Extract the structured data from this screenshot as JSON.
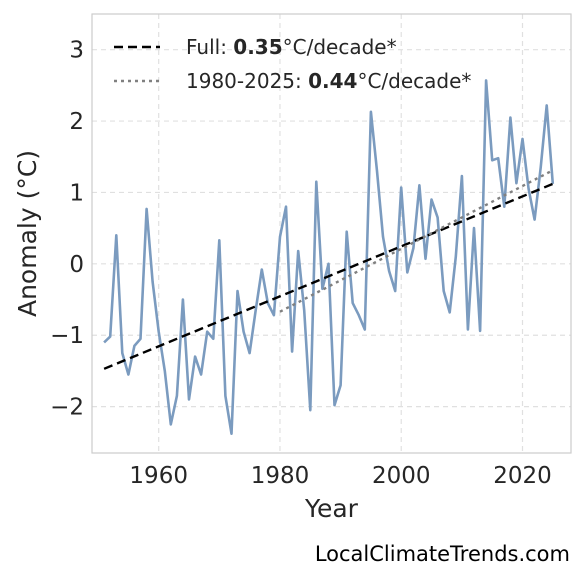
{
  "chart_data": {
    "type": "line",
    "xlabel": "Year",
    "ylabel": "Anomaly (°C)",
    "xlim": [
      1949,
      2028
    ],
    "ylim": [
      -2.65,
      3.5
    ],
    "x_ticks": [
      1960,
      1980,
      2000,
      2020
    ],
    "y_ticks": [
      -2,
      -1,
      0,
      1,
      2,
      3
    ],
    "y_tick_labels": [
      "−2",
      "−1",
      "0",
      "1",
      "2",
      "3"
    ],
    "grid": true,
    "legend_position": "top-left",
    "series": [
      {
        "color": "#7b9bbf",
        "style": "solid",
        "x": [
          1951,
          1952,
          1953,
          1954,
          1955,
          1956,
          1957,
          1958,
          1959,
          1960,
          1961,
          1962,
          1963,
          1964,
          1965,
          1966,
          1967,
          1968,
          1969,
          1970,
          1971,
          1972,
          1973,
          1974,
          1975,
          1976,
          1977,
          1978,
          1979,
          1980,
          1981,
          1982,
          1983,
          1984,
          1985,
          1986,
          1987,
          1988,
          1989,
          1990,
          1991,
          1992,
          1993,
          1994,
          1995,
          1996,
          1997,
          1998,
          1999,
          2000,
          2001,
          2002,
          2003,
          2004,
          2005,
          2006,
          2007,
          2008,
          2009,
          2010,
          2011,
          2012,
          2013,
          2014,
          2015,
          2016,
          2017,
          2018,
          2019,
          2020,
          2021,
          2022,
          2023,
          2024,
          2025
        ],
        "y": [
          -1.1,
          -1.02,
          0.4,
          -1.25,
          -1.55,
          -1.15,
          -1.05,
          0.77,
          -0.25,
          -0.95,
          -1.5,
          -2.25,
          -1.85,
          -0.5,
          -1.9,
          -1.3,
          -1.55,
          -0.95,
          -1.05,
          0.33,
          -1.85,
          -2.38,
          -0.38,
          -0.95,
          -1.25,
          -0.65,
          -0.08,
          -0.55,
          -0.72,
          0.38,
          0.8,
          -1.23,
          0.18,
          -0.65,
          -2.05,
          1.15,
          -0.35,
          0.0,
          -1.98,
          -1.7,
          0.45,
          -0.55,
          -0.72,
          -0.92,
          2.13,
          1.3,
          0.38,
          -0.1,
          -0.38,
          1.07,
          -0.12,
          0.22,
          1.1,
          0.07,
          0.9,
          0.65,
          -0.38,
          -0.68,
          0.1,
          1.23,
          -0.92,
          0.5,
          -0.94,
          2.57,
          1.45,
          1.48,
          0.8,
          2.05,
          1.13,
          1.75,
          1.05,
          0.62,
          1.35,
          2.22,
          1.12
        ]
      },
      {
        "name": "Full: 0.35°C/decade*",
        "color": "#000000",
        "style": "dashed",
        "x": [
          1951,
          2025
        ],
        "y": [
          -1.47,
          1.12
        ]
      },
      {
        "name": "1980-2025: 0.44°C/decade*",
        "color": "#808080",
        "style": "dotted",
        "x": [
          1980,
          2025
        ],
        "y": [
          -0.67,
          1.31
        ]
      }
    ],
    "legend": [
      {
        "prefix": "Full: ",
        "bold": "0.35",
        "suffix": "°C/decade*",
        "color": "#000000",
        "style": "dashed"
      },
      {
        "prefix": "1980-2025: ",
        "bold": "0.44",
        "suffix": "°C/decade*",
        "color": "#808080",
        "style": "dotted"
      }
    ]
  },
  "credit": "LocalClimateTrends.com"
}
